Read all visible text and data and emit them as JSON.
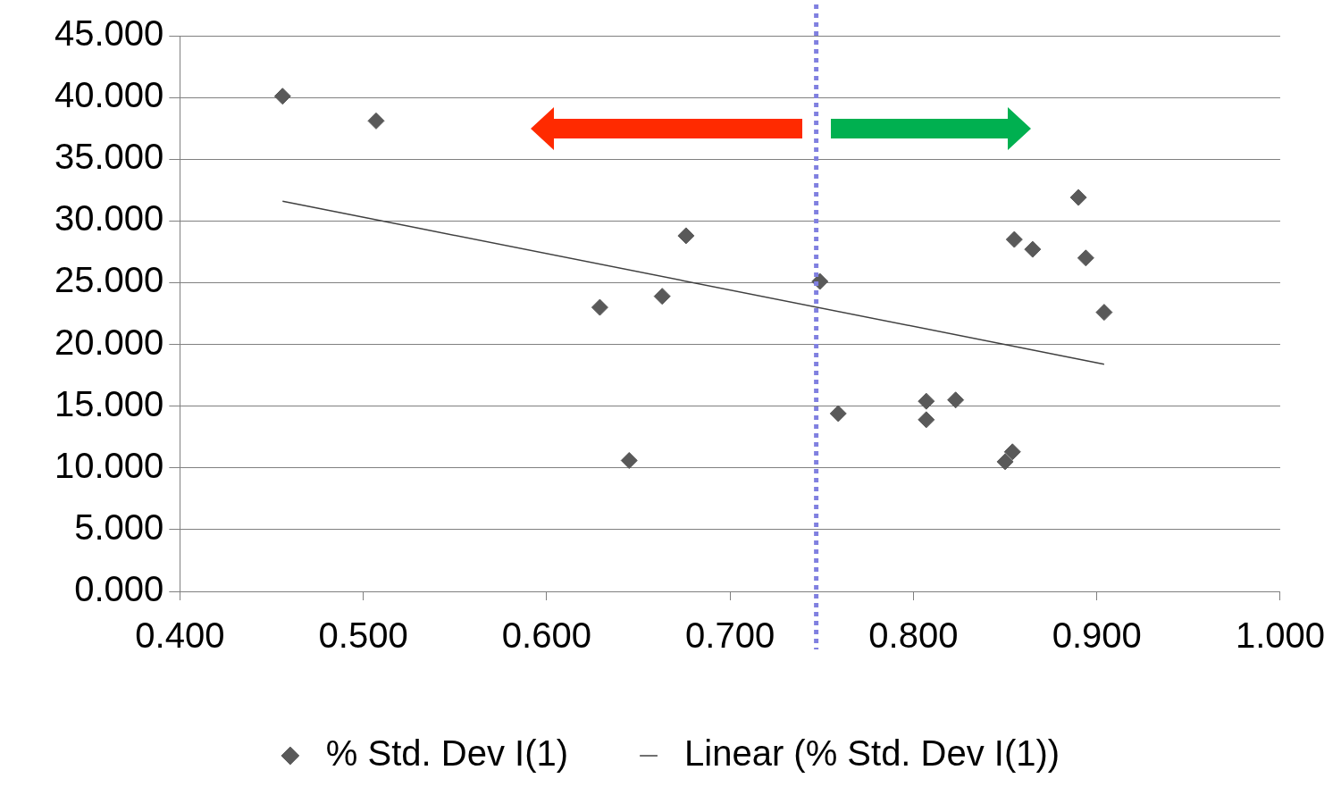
{
  "chart_data": {
    "type": "scatter",
    "xlim": [
      0.4,
      1.0
    ],
    "xticks": [
      {
        "value": 0.4,
        "label": "0.400"
      },
      {
        "value": 0.5,
        "label": "0.500"
      },
      {
        "value": 0.6,
        "label": "0.600"
      },
      {
        "value": 0.7,
        "label": "0.700"
      },
      {
        "value": 0.8,
        "label": "0.800"
      },
      {
        "value": 0.9,
        "label": "0.900"
      },
      {
        "value": 1.0,
        "label": "1.000"
      }
    ],
    "ylim": [
      0,
      45
    ],
    "yticks": [
      {
        "value": 0,
        "label": "0.000"
      },
      {
        "value": 5,
        "label": "5.000"
      },
      {
        "value": 10,
        "label": "10.000"
      },
      {
        "value": 15,
        "label": "15.000"
      },
      {
        "value": 20,
        "label": "20.000"
      },
      {
        "value": 25,
        "label": "25.000"
      },
      {
        "value": 30,
        "label": "30.000"
      },
      {
        "value": 35,
        "label": "35.000"
      },
      {
        "value": 40,
        "label": "40.000"
      },
      {
        "value": 45,
        "label": "45.000"
      }
    ],
    "grid": "y",
    "legend": "bottom",
    "series": [
      {
        "name": "% Std. Dev I(1)",
        "marker": "diamond",
        "color": "#595959",
        "x": [
          0.456,
          0.507,
          0.629,
          0.645,
          0.663,
          0.676,
          0.749,
          0.759,
          0.807,
          0.807,
          0.823,
          0.85,
          0.854,
          0.855,
          0.865,
          0.89,
          0.894,
          0.904
        ],
        "values": [
          40.1,
          38.1,
          23.0,
          10.6,
          23.9,
          28.8,
          25.1,
          14.4,
          15.4,
          13.9,
          15.5,
          10.5,
          11.3,
          28.5,
          27.7,
          31.9,
          27.0,
          22.6
        ]
      },
      {
        "name": "Linear (% Std. Dev I(1))",
        "type": "line",
        "marker": "none",
        "color": "#404040",
        "x": [
          0.456,
          0.904
        ],
        "values": [
          31.6,
          18.4
        ]
      }
    ],
    "ref_lines": [
      {
        "axis": "x",
        "value": 0.747,
        "color": "#8080e0",
        "line_style": "dotted"
      }
    ]
  }
}
